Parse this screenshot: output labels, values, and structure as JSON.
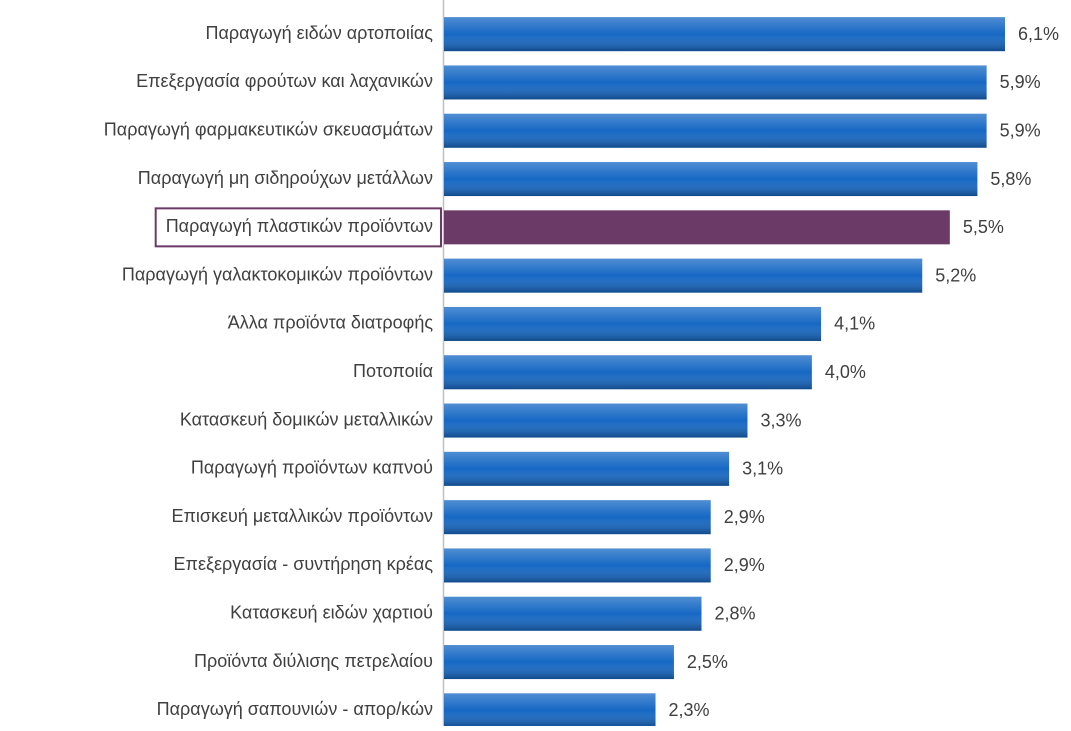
{
  "chart_data": {
    "type": "bar",
    "orientation": "horizontal",
    "categories": [
      "Παραγωγή ειδών αρτοποιίας",
      "Επεξεργασία φρούτων και λαχανικών",
      "Παραγωγή φαρμακευτικών σκευασμάτων",
      "Παραγωγή μη σιδηρούχων μετάλλων",
      "Παραγωγή πλαστικών προϊόντων",
      "Παραγωγή γαλακτοκομικών προϊόντων",
      "Άλλα προϊόντα διατροφής",
      "Ποτοποιία",
      "Κατασκευή δομικών μεταλλικών",
      "Παραγωγή προϊόντων καπνού",
      "Επισκευή μεταλλικών προϊόντων",
      "Επεξεργασία - συντήρηση κρέας",
      "Κατασκευή ειδών χαρτιού",
      "Προϊόντα διύλισης πετρελαίου",
      "Παραγωγή σαπουνιών - απορ/κών"
    ],
    "values": [
      6.1,
      5.9,
      5.9,
      5.8,
      5.5,
      5.2,
      4.1,
      4.0,
      3.3,
      3.1,
      2.9,
      2.9,
      2.8,
      2.5,
      2.3
    ],
    "value_labels": [
      "6,1%",
      "5,9%",
      "5,9%",
      "5,8%",
      "5,5%",
      "5,2%",
      "4,1%",
      "4,0%",
      "3,3%",
      "3,1%",
      "2,9%",
      "2,9%",
      "2,8%",
      "2,5%",
      "2,3%"
    ],
    "color": "#1668c4",
    "colors": [
      "#1668c4",
      "#1668c4",
      "#1668c4",
      "#1668c4",
      "#6b3a66",
      "#1668c4",
      "#1668c4",
      "#1668c4",
      "#1668c4",
      "#1668c4",
      "#1668c4",
      "#1668c4",
      "#1668c4",
      "#1668c4",
      "#1668c4"
    ]
  }
}
